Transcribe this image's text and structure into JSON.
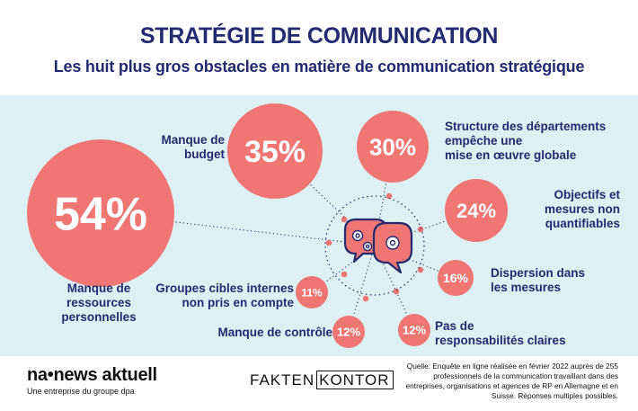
{
  "header": {
    "title": "STRATÉGIE DE COMMUNICATION",
    "subtitle": "Les huit plus gros obstacles en matière de communication stratégique"
  },
  "colors": {
    "navy": "#232a6e",
    "coral": "#f07673",
    "band": "#ddf0f4",
    "white": "#ffffff"
  },
  "chart_data": {
    "type": "bubble",
    "unit": "%",
    "items": [
      {
        "label": [
          "Manque de",
          "ressources",
          "personnelles"
        ],
        "value": 54,
        "display": "54%"
      },
      {
        "label": [
          "Manque de",
          "budget"
        ],
        "value": 35,
        "display": "35%"
      },
      {
        "label": [
          "Structure des départements",
          "empêche une",
          "mise en œuvre globale"
        ],
        "value": 30,
        "display": "30%"
      },
      {
        "label": [
          "Objectifs et",
          "mesures non",
          "quantifiables"
        ],
        "value": 24,
        "display": "24%"
      },
      {
        "label": [
          "Dispersion dans",
          "les mesures"
        ],
        "value": 16,
        "display": "16%"
      },
      {
        "label": [
          "Pas de",
          "responsabilités claires"
        ],
        "value": 12,
        "display": "12%"
      },
      {
        "label": [
          "Manque de contrôle"
        ],
        "value": 12,
        "display": "12%"
      },
      {
        "label": [
          "Groupes cibles internes",
          "non pris en compte"
        ],
        "value": 11,
        "display": "11%"
      }
    ]
  },
  "footer": {
    "logo_main": "na•news aktuell",
    "logo_sub": "Une entreprise du groupe dpa",
    "brand_left": "FAKTEN",
    "brand_right": "KONTOR",
    "source": "Quelle: Enquête en ligne réalisée en février 2022 auprès de 255 professionnels de la communication travaillant dans des entreprises, organisations et agences de RP en Allemagne et en Suisse. Réponses multiples possibles."
  }
}
